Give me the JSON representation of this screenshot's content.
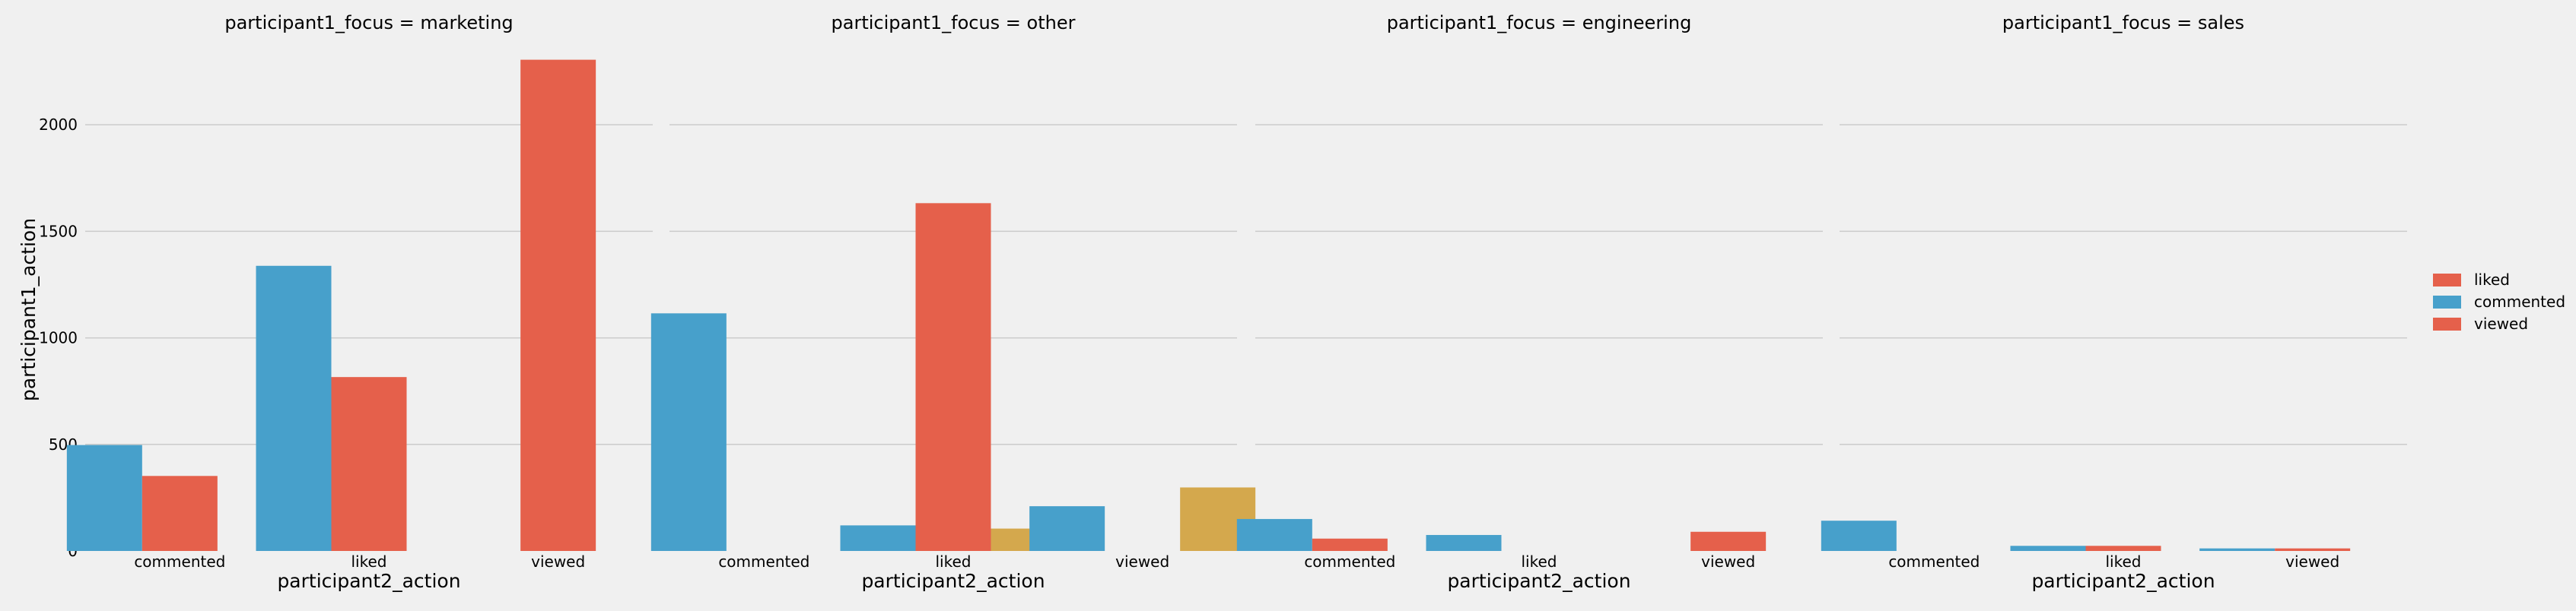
{
  "chart_data": {
    "type": "bar",
    "ylabel": "participant1_action",
    "ylim": [
      0,
      2300
    ],
    "yticks": [
      0,
      500,
      1000,
      1500,
      2000
    ],
    "grid": "horizontal",
    "legend_placement": "right",
    "legend": [
      {
        "label": "liked",
        "color": "#e5604b"
      },
      {
        "label": "commented",
        "color": "#47a0cb"
      },
      {
        "label": "viewed",
        "color": "#e5604b"
      }
    ],
    "facets": [
      {
        "title": "participant1_focus = marketing",
        "xlabel": "participant2_action",
        "categories": [
          "commented",
          "liked",
          "viewed"
        ],
        "series": [
          {
            "color": "#47a0cb",
            "values": [
              497,
              1338,
              0
            ]
          },
          {
            "color": "#e5604b",
            "values": [
              352,
              816,
              2305
            ]
          },
          {
            "color": "#d4a84d",
            "values": [
              0,
              0,
              0
            ]
          }
        ]
      },
      {
        "title": "participant1_focus = other",
        "xlabel": "participant2_action",
        "categories": [
          "commented",
          "liked",
          "viewed"
        ],
        "series": [
          {
            "color": "#47a0cb",
            "values": [
              1115,
              120,
              210
            ]
          },
          {
            "color": "#e5604b",
            "values": [
              0,
              1632,
              0
            ]
          },
          {
            "color": "#d4a84d",
            "values": [
              0,
              105,
              298
            ]
          }
        ]
      },
      {
        "title": "participant1_focus = engineering",
        "xlabel": "participant2_action",
        "categories": [
          "commented",
          "liked",
          "viewed"
        ],
        "series": [
          {
            "color": "#47a0cb",
            "values": [
              150,
              75,
              0
            ]
          },
          {
            "color": "#e5604b",
            "values": [
              58,
              0,
              90
            ]
          },
          {
            "color": "#d4a84d",
            "values": [
              0,
              0,
              0
            ]
          }
        ]
      },
      {
        "title": "participant1_focus = sales",
        "xlabel": "participant2_action",
        "categories": [
          "commented",
          "liked",
          "viewed"
        ],
        "series": [
          {
            "color": "#47a0cb",
            "values": [
              142,
              24,
              12
            ]
          },
          {
            "color": "#e5604b",
            "values": [
              0,
              24,
              12
            ]
          },
          {
            "color": "#d4a84d",
            "values": [
              0,
              0,
              0
            ]
          }
        ]
      }
    ]
  }
}
